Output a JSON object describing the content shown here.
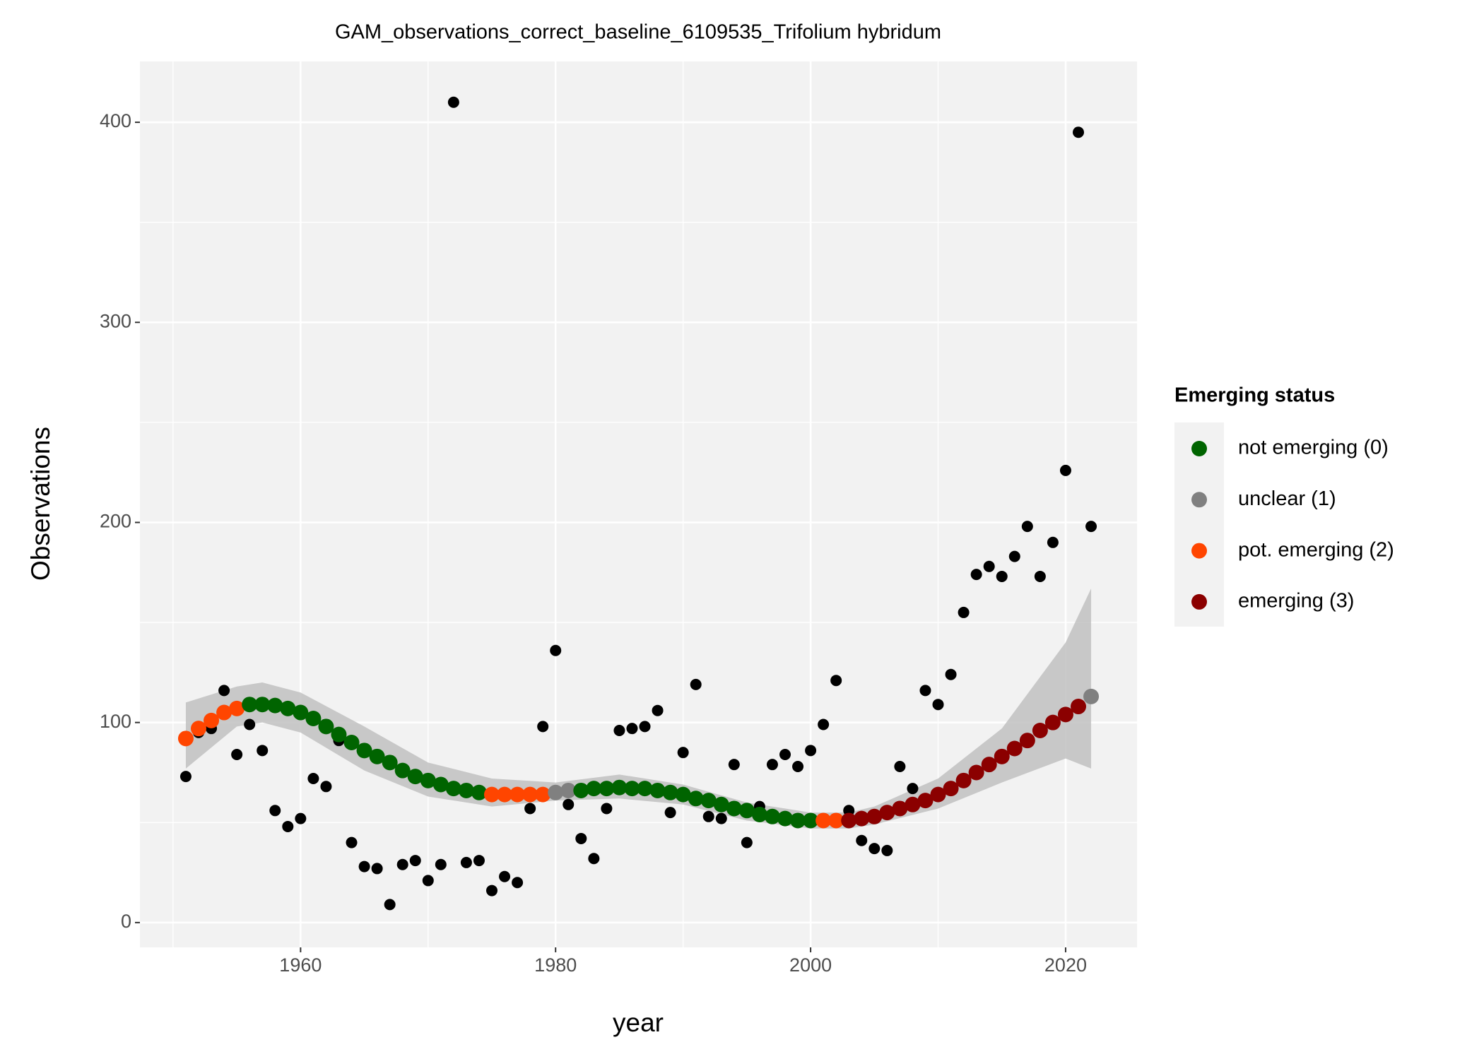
{
  "chart_data": {
    "type": "scatter",
    "title": "GAM_observations_correct_baseline_6109535_Trifolium hybridum",
    "x_label": "year",
    "y_label": "Observations",
    "xlim": [
      1947.4,
      2025.6
    ],
    "ylim": [
      -12.4,
      430.4
    ],
    "xticks": [
      1960,
      1980,
      2000,
      2020
    ],
    "yticks": [
      0,
      100,
      200,
      300,
      400
    ],
    "grid": true,
    "x": [
      1951,
      1952,
      1953,
      1954,
      1955,
      1956,
      1957,
      1958,
      1959,
      1960,
      1961,
      1962,
      1963,
      1964,
      1965,
      1966,
      1967,
      1968,
      1969,
      1970,
      1971,
      1972,
      1973,
      1974,
      1975,
      1976,
      1977,
      1978,
      1979,
      1980,
      1981,
      1982,
      1983,
      1984,
      1985,
      1986,
      1987,
      1988,
      1989,
      1990,
      1991,
      1992,
      1993,
      1994,
      1995,
      1996,
      1997,
      1998,
      1999,
      2000,
      2001,
      2002,
      2003,
      2004,
      2005,
      2006,
      2007,
      2008,
      2009,
      2010,
      2011,
      2012,
      2013,
      2014,
      2015,
      2016,
      2017,
      2018,
      2019,
      2020,
      2021,
      2022
    ],
    "observations": {
      "color": "#000000",
      "values": [
        73,
        95,
        97,
        116,
        84,
        99,
        86,
        56,
        48,
        52,
        72,
        68,
        91,
        40,
        28,
        27,
        9,
        29,
        31,
        21,
        29,
        410,
        30,
        31,
        16,
        23,
        20,
        57,
        98,
        136,
        59,
        42,
        32,
        57,
        96,
        97,
        98,
        106,
        55,
        85,
        119,
        53,
        52,
        79,
        40,
        58,
        79,
        84,
        78,
        86,
        99,
        121,
        56,
        41,
        37,
        36,
        78,
        67,
        116,
        109,
        124,
        155,
        174,
        178,
        173,
        183,
        198,
        173,
        190,
        226,
        395,
        198
      ]
    },
    "fit": {
      "values": [
        92,
        97,
        101,
        105,
        107,
        109,
        109,
        108.5,
        107,
        105,
        102,
        98,
        94,
        90,
        86,
        83,
        80,
        76,
        73,
        71,
        69,
        67,
        66,
        65,
        64,
        64,
        64,
        64,
        64,
        65,
        66,
        66,
        67,
        67,
        67.5,
        67,
        67,
        66,
        65,
        64,
        62,
        61,
        59,
        57,
        56,
        54,
        53,
        52,
        51,
        51,
        51,
        51,
        51,
        52,
        53,
        55,
        57,
        59,
        61,
        64,
        67,
        71,
        75,
        79,
        83,
        87,
        91,
        96,
        100,
        104,
        108,
        113
      ],
      "status": [
        2,
        2,
        2,
        2,
        2,
        0,
        0,
        0,
        0,
        0,
        0,
        0,
        0,
        0,
        0,
        0,
        0,
        0,
        0,
        0,
        0,
        0,
        0,
        0,
        2,
        2,
        2,
        2,
        2,
        1,
        1,
        0,
        0,
        0,
        0,
        0,
        0,
        0,
        0,
        0,
        0,
        0,
        0,
        0,
        0,
        0,
        0,
        0,
        0,
        0,
        2,
        2,
        3,
        3,
        3,
        3,
        3,
        3,
        3,
        3,
        3,
        3,
        3,
        3,
        3,
        3,
        3,
        3,
        3,
        3,
        3,
        1
      ]
    },
    "ribbon": {
      "color": "#bdbdbd",
      "x": [
        1951,
        1955,
        1957,
        1960,
        1965,
        1970,
        1975,
        1980,
        1985,
        1990,
        1995,
        2000,
        2003,
        2005,
        2010,
        2015,
        2020,
        2022
      ],
      "upper": [
        110,
        118,
        120,
        115,
        98,
        80,
        72,
        70,
        74,
        69,
        60,
        55,
        55,
        58,
        72,
        97,
        140,
        167
      ],
      "lower": [
        77,
        98,
        100,
        95,
        76,
        63,
        58,
        61,
        62,
        59,
        51,
        47,
        47,
        49,
        57,
        70,
        82,
        77
      ]
    },
    "legend": {
      "title": "Emerging status",
      "position": "right",
      "entries": [
        {
          "name": "not emerging (0)",
          "color": "#006400"
        },
        {
          "name": "unclear (1)",
          "color": "#808080"
        },
        {
          "name": "pot. emerging (2)",
          "color": "#FF4500"
        },
        {
          "name": "emerging (3)",
          "color": "#8B0000"
        }
      ]
    }
  }
}
